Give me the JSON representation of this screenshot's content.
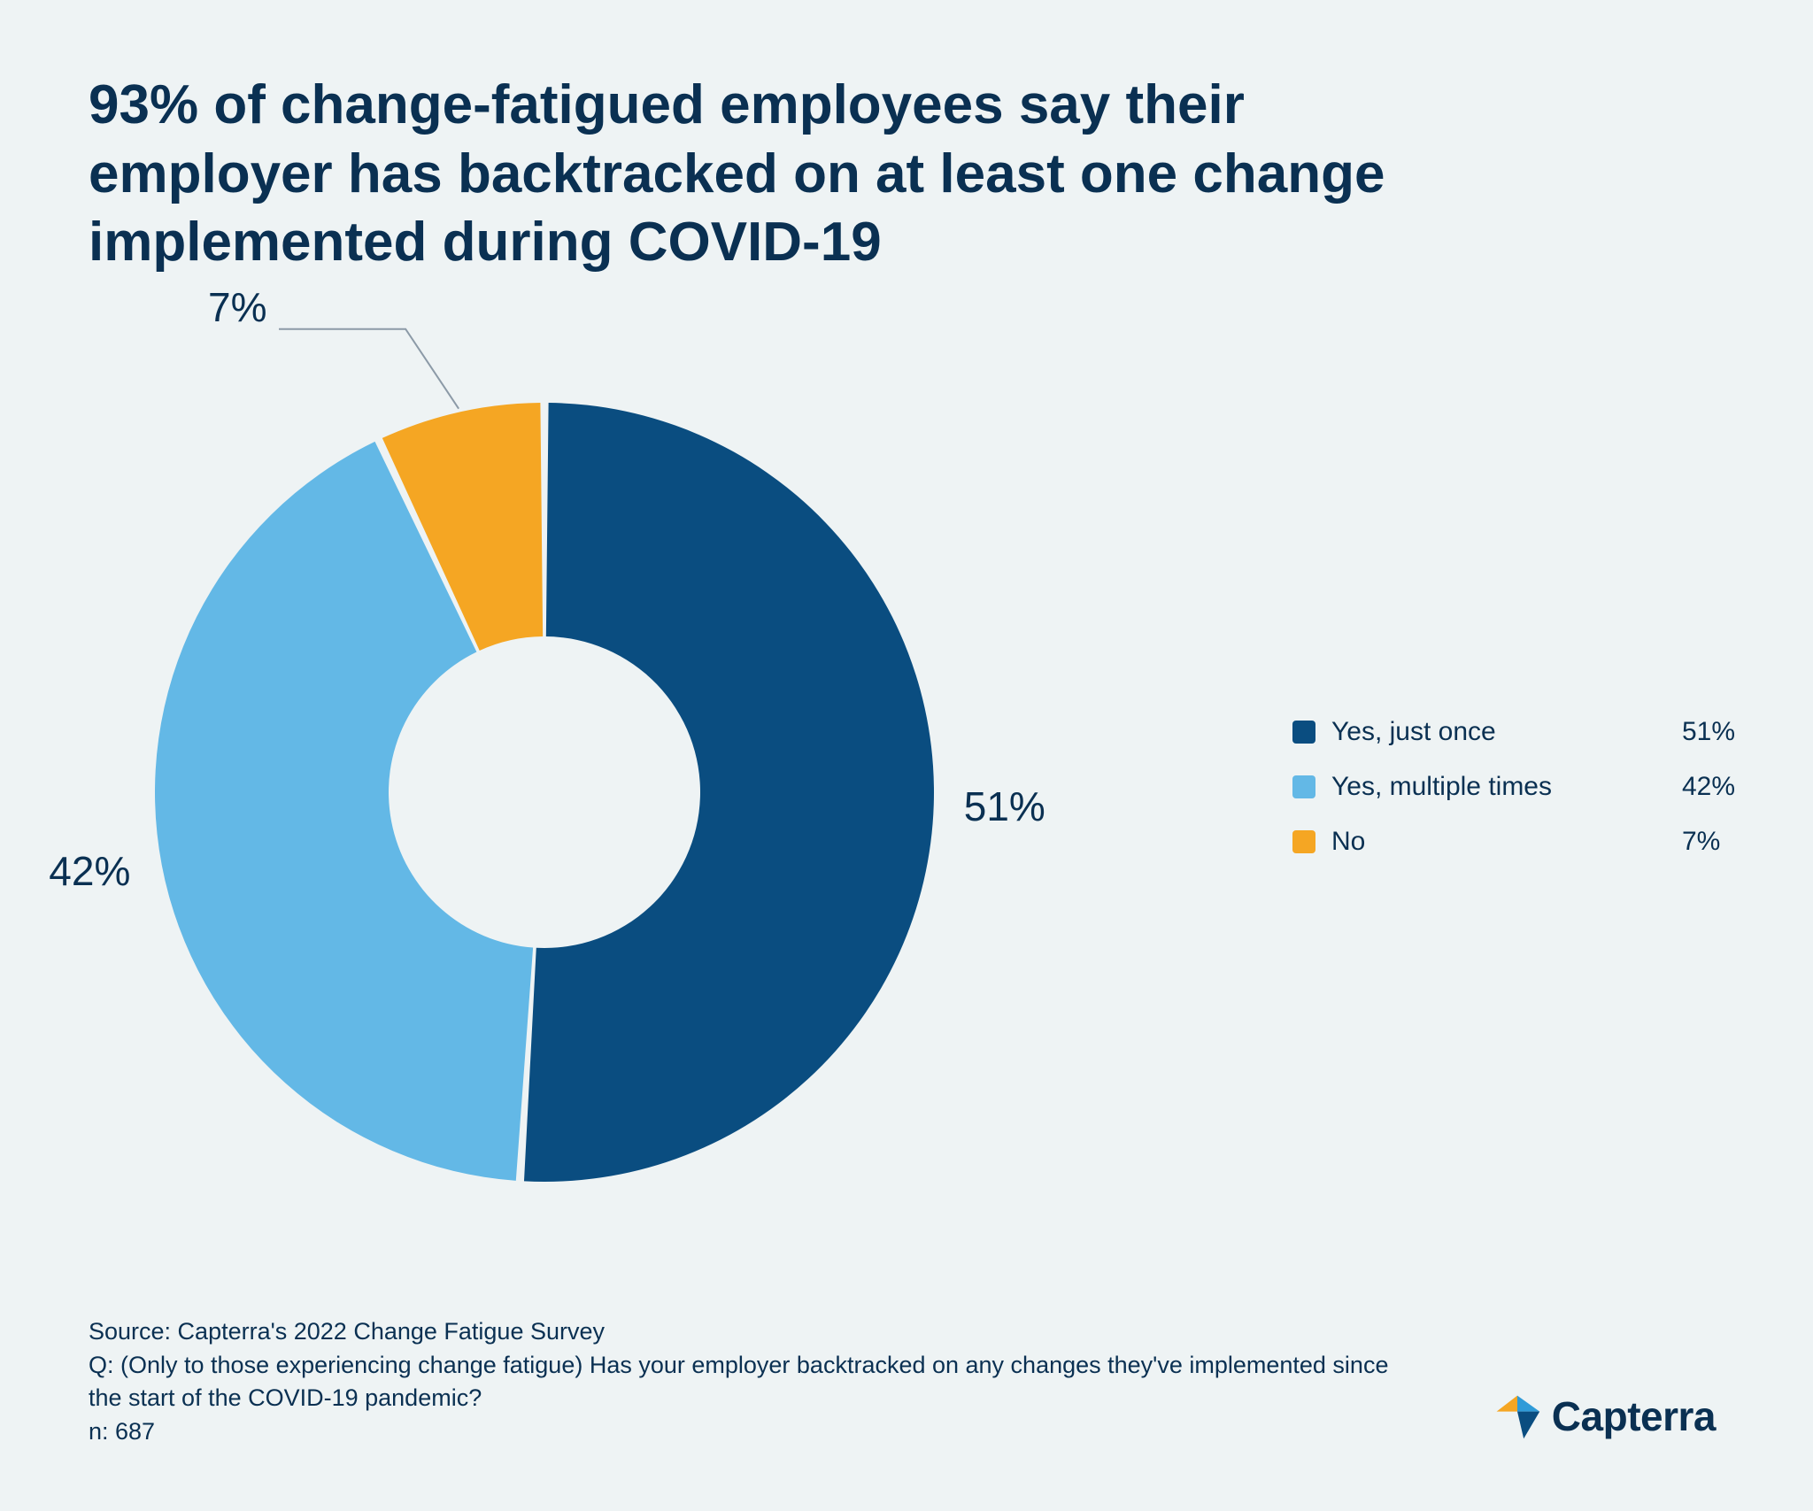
{
  "title": "93% of change-fatigued employees say their employer has backtracked on at least one change implemented during COVID-19",
  "chart": {
    "type": "donut",
    "background_color": "#eef3f4",
    "inner_radius_ratio": 0.4,
    "outer_radius": 440,
    "slice_gap_deg": 1.2,
    "start_angle_deg": -90,
    "slices": [
      {
        "key": "yes_once",
        "label": "Yes, just once",
        "value": 51,
        "display": "51%",
        "color": "#0a4d80"
      },
      {
        "key": "yes_multiple",
        "label": "Yes, multiple times",
        "value": 42,
        "display": "42%",
        "color": "#63b8e6"
      },
      {
        "key": "no",
        "label": "No",
        "value": 7,
        "display": "7%",
        "color": "#f5a623"
      }
    ],
    "slice_labels": {
      "yes_once": {
        "text": "51%",
        "pos": "outer-right",
        "fontsize": 46
      },
      "yes_multiple": {
        "text": "42%",
        "pos": "outer-left",
        "fontsize": 46
      },
      "no": {
        "text": "7%",
        "pos": "callout-top-left",
        "fontsize": 46,
        "leader_color": "#8c9aa7"
      }
    },
    "label_color": "#0a3052"
  },
  "legend": {
    "fontsize": 30,
    "text_color": "#0a3052",
    "swatch_radius": 4,
    "items": [
      {
        "label": "Yes, just once",
        "value": "51%",
        "color": "#0a4d80"
      },
      {
        "label": "Yes, multiple times",
        "value": "42%",
        "color": "#63b8e6"
      },
      {
        "label": "No",
        "value": "7%",
        "color": "#f5a623"
      }
    ]
  },
  "footer": {
    "source": "Source: Capterra's 2022 Change Fatigue Survey",
    "question": "Q: (Only to those experiencing change fatigue) Has your employer backtracked on any changes they've implemented since the start of the COVID-19 pandemic?",
    "n": "n: 687",
    "fontsize": 27,
    "color": "#0a3052"
  },
  "brand": {
    "name": "Capterra",
    "icon_colors": {
      "left": "#f5a623",
      "right": "#2f9bd8",
      "bottom": "#0a4d80"
    },
    "text_color": "#0a3052"
  }
}
